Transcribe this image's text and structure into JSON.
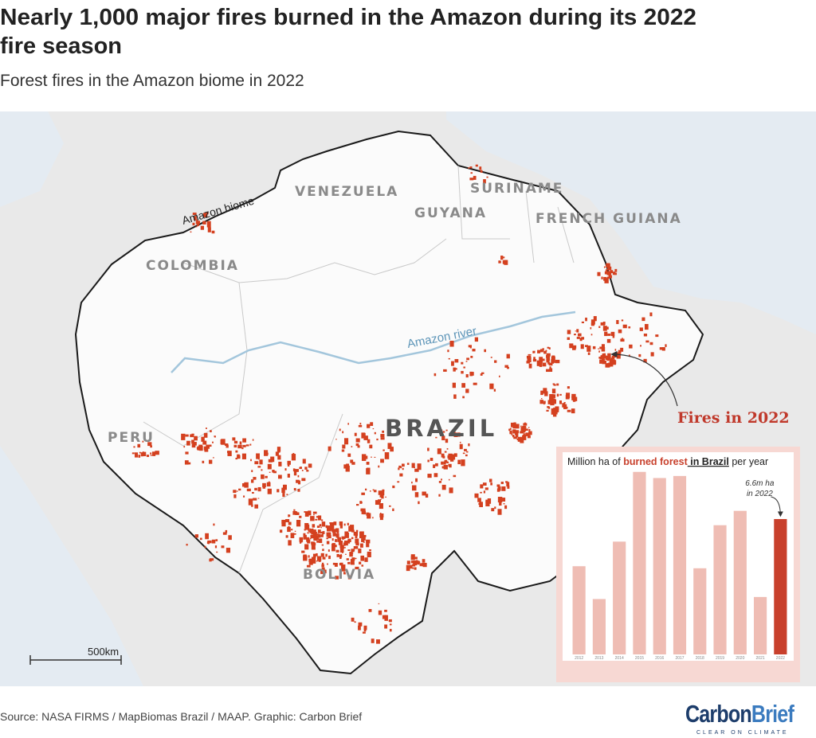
{
  "header": {
    "title_lines": [
      "Nearly 1,000 major fires burned in the Amazon during its 2022",
      "fire season"
    ],
    "subtitle": "Forest fires in the Amazon biome in 2022"
  },
  "map": {
    "countries": [
      "VENEZUELA",
      "GUYANA",
      "SURINAME",
      "FRENCH GUIANA",
      "COLOMBIA",
      "PERU",
      "BOLIVIA"
    ],
    "main_country": "BRAZIL",
    "biome_label": "Amazon biome",
    "river_label": "Amazon river",
    "fires_label": "Fires in 2022",
    "scale_label": "500km"
  },
  "chart_data": {
    "type": "bar",
    "title_parts": [
      "Million ha of ",
      "burned forest",
      " in Brazil",
      " per year"
    ],
    "categories": [
      "2012",
      "2013",
      "2014",
      "2015",
      "2016",
      "2017",
      "2018",
      "2019",
      "2020",
      "2021",
      "2022"
    ],
    "values": [
      4.3,
      2.7,
      5.5,
      8.9,
      8.6,
      8.7,
      4.2,
      6.3,
      7.0,
      2.8,
      6.6
    ],
    "colors": [
      "#efbdb4",
      "#efbdb4",
      "#efbdb4",
      "#efbdb4",
      "#efbdb4",
      "#efbdb4",
      "#efbdb4",
      "#efbdb4",
      "#efbdb4",
      "#efbdb4",
      "#c8402c"
    ],
    "annotation_lines": [
      "6.6m ha",
      "in 2022"
    ],
    "ylim": [
      0,
      9.2
    ]
  },
  "footer": {
    "source": "Source: NASA FIRMS / MapBiomas Brazil / MAAP. Graphic: Carbon Brief",
    "logo_main": "Carbon",
    "logo_accent": "Brief",
    "logo_tagline": "CLEAR ON CLIMATE"
  }
}
